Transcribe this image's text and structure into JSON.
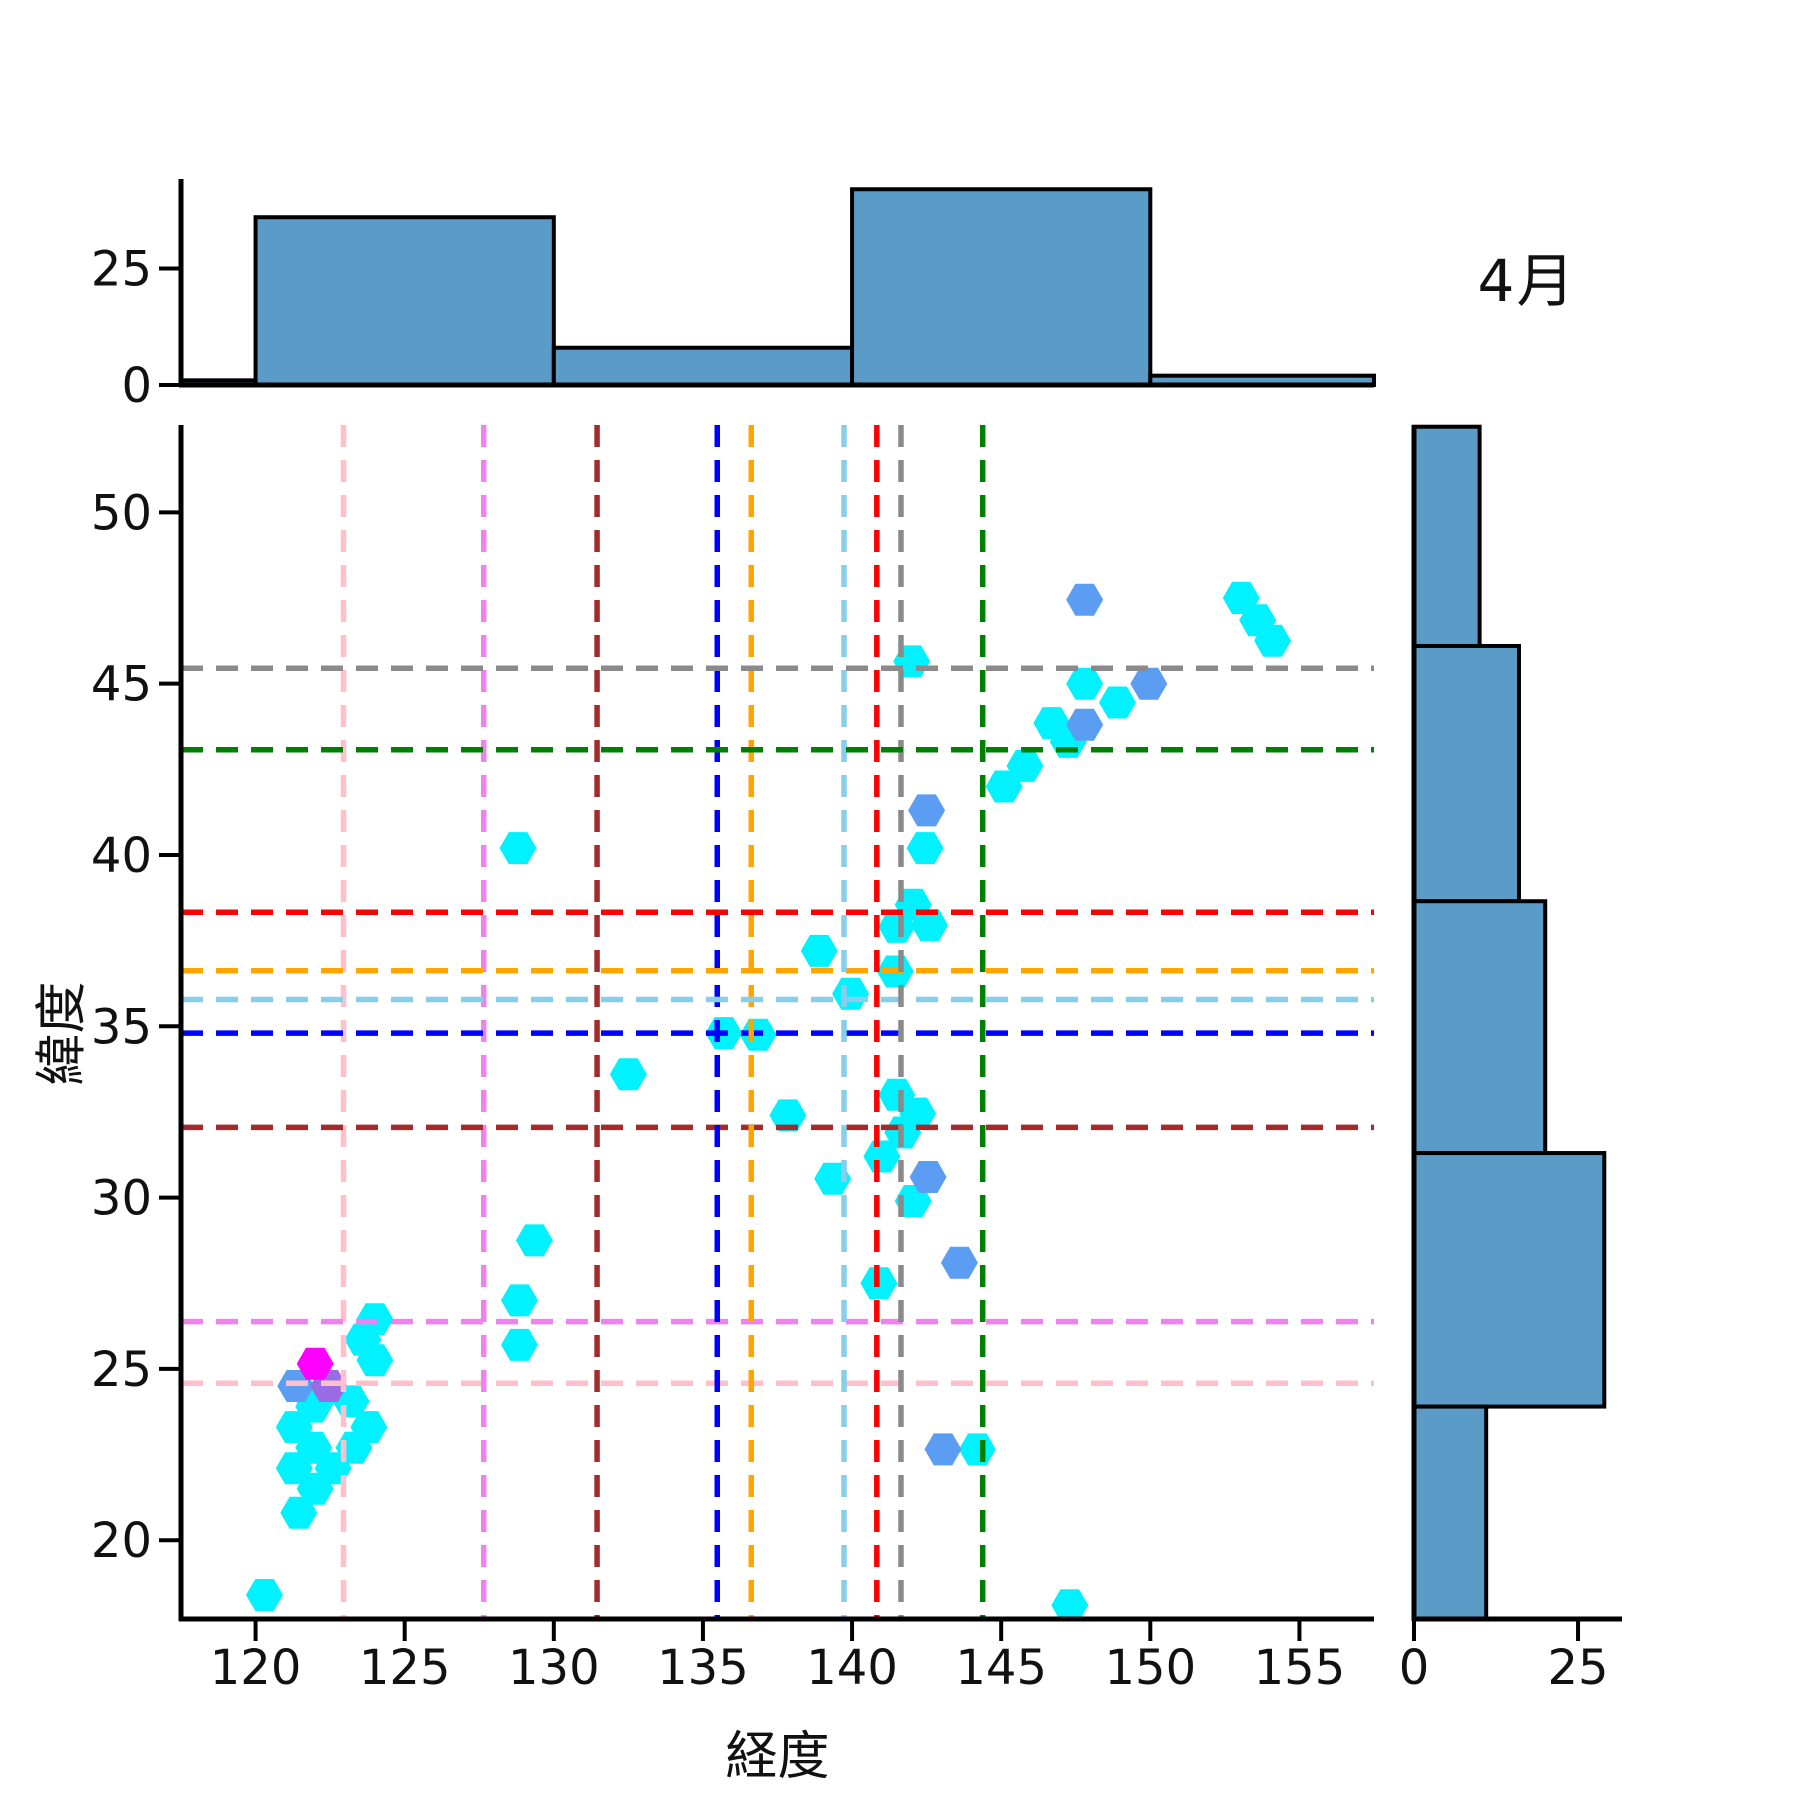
{
  "title": "4月",
  "axes": {
    "xlabel": "経度",
    "ylabel": "緯度"
  },
  "chart_data": {
    "type": "scatter",
    "subtype": "jointplot-hex-markers-with-marginal-histograms",
    "title": "4月",
    "xlabel": "経度",
    "ylabel": "緯度",
    "xlim": [
      117.5,
      157.5
    ],
    "ylim": [
      17.7,
      52.55
    ],
    "xticks": [
      120,
      125,
      130,
      135,
      140,
      145,
      150,
      155
    ],
    "yticks": [
      20,
      25,
      30,
      35,
      40,
      45,
      50
    ],
    "grid": false,
    "marker": "hexagon",
    "series": [
      {
        "name": "points-cyan",
        "color": "#00F2FF",
        "points": [
          [
            120.3,
            18.4
          ],
          [
            121.45,
            20.8
          ],
          [
            124.0,
            26.45
          ],
          [
            123.6,
            25.85
          ],
          [
            124.0,
            25.25
          ],
          [
            122.0,
            24.0
          ],
          [
            123.2,
            24.05
          ],
          [
            121.95,
            23.9
          ],
          [
            121.3,
            23.3
          ],
          [
            123.8,
            23.3
          ],
          [
            123.3,
            22.7
          ],
          [
            121.95,
            22.7
          ],
          [
            121.3,
            22.1
          ],
          [
            122.6,
            22.1
          ],
          [
            122.0,
            21.5
          ],
          [
            128.85,
            27.0
          ],
          [
            128.85,
            25.7
          ],
          [
            129.35,
            28.75
          ],
          [
            128.8,
            40.2
          ],
          [
            132.5,
            33.6
          ],
          [
            135.7,
            34.8
          ],
          [
            136.85,
            34.75
          ],
          [
            137.85,
            32.4
          ],
          [
            138.9,
            37.2
          ],
          [
            139.95,
            35.95
          ],
          [
            139.35,
            30.55
          ],
          [
            141.45,
            36.6
          ],
          [
            141.5,
            37.9
          ],
          [
            142.6,
            37.95
          ],
          [
            142.05,
            38.55
          ],
          [
            142.0,
            45.65
          ],
          [
            142.45,
            40.2
          ],
          [
            141.5,
            33.0
          ],
          [
            141.7,
            31.9
          ],
          [
            142.2,
            32.45
          ],
          [
            141.0,
            31.2
          ],
          [
            142.05,
            29.9
          ],
          [
            140.9,
            27.5
          ],
          [
            144.2,
            22.65
          ],
          [
            147.3,
            18.1
          ],
          [
            145.1,
            42.0
          ],
          [
            145.8,
            42.6
          ],
          [
            146.7,
            43.85
          ],
          [
            147.25,
            43.3
          ],
          [
            147.8,
            45.0
          ],
          [
            148.9,
            44.45
          ],
          [
            153.05,
            47.5
          ],
          [
            153.6,
            46.85
          ],
          [
            154.1,
            46.25
          ]
        ]
      },
      {
        "name": "points-cornflowerblue",
        "color": "#5B9DF2",
        "points": [
          [
            121.35,
            24.5
          ],
          [
            142.5,
            41.3
          ],
          [
            142.55,
            30.6
          ],
          [
            143.6,
            28.1
          ],
          [
            143.05,
            22.65
          ],
          [
            147.8,
            47.45
          ],
          [
            149.95,
            45.0
          ],
          [
            147.8,
            43.8
          ]
        ]
      },
      {
        "name": "points-mediumpurple",
        "color": "#9A6CE4",
        "points": [
          [
            122.45,
            24.5
          ]
        ]
      },
      {
        "name": "points-magenta",
        "color": "#FF00FF",
        "points": [
          [
            122.0,
            25.15
          ]
        ]
      }
    ],
    "reference_crosshairs": [
      {
        "name": "pink",
        "color": "#FFC0CB",
        "x": 122.95,
        "y": 24.58
      },
      {
        "name": "violet",
        "color": "#EE82EE",
        "x": 127.65,
        "y": 26.38
      },
      {
        "name": "brown",
        "color": "#A52A2A",
        "x": 131.45,
        "y": 32.05
      },
      {
        "name": "blue",
        "color": "#0000FF",
        "x": 135.48,
        "y": 34.8
      },
      {
        "name": "orange",
        "color": "#FFA500",
        "x": 136.62,
        "y": 36.62
      },
      {
        "name": "skyblue",
        "color": "#87CEEB",
        "x": 139.73,
        "y": 35.78
      },
      {
        "name": "red",
        "color": "#FF0000",
        "x": 140.83,
        "y": 38.33
      },
      {
        "name": "gray",
        "color": "#8A8A8A",
        "x": 141.64,
        "y": 45.45
      },
      {
        "name": "green",
        "color": "#008000",
        "x": 144.38,
        "y": 43.07
      }
    ],
    "top_histogram": {
      "orientation": "vertical",
      "bin_edges": [
        117.5,
        120.0,
        130.0,
        140.0,
        150.0,
        157.5
      ],
      "counts": [
        1,
        36,
        8,
        42,
        2
      ],
      "yticks": [
        0,
        25
      ],
      "ylim": [
        0,
        44.2
      ],
      "bar_color": "#5B9BC8",
      "edge_color": "#000000"
    },
    "right_histogram": {
      "orientation": "horizontal",
      "bin_edges": [
        52.5,
        46.1,
        38.65,
        31.3,
        23.9,
        16.6
      ],
      "counts": [
        10,
        16,
        20,
        29,
        11
      ],
      "xticks": [
        0,
        25
      ],
      "xlim": [
        0,
        31.7
      ],
      "bar_color": "#5B9BC8",
      "edge_color": "#000000"
    },
    "style": {
      "spine_color": "#000000",
      "spine_width": 5,
      "tick_length": 20,
      "tick_width": 4,
      "tick_font_size": 48,
      "dash_pattern": "22 13",
      "dash_width": 5.5,
      "hex_width": 37,
      "hex_height": 32
    }
  }
}
